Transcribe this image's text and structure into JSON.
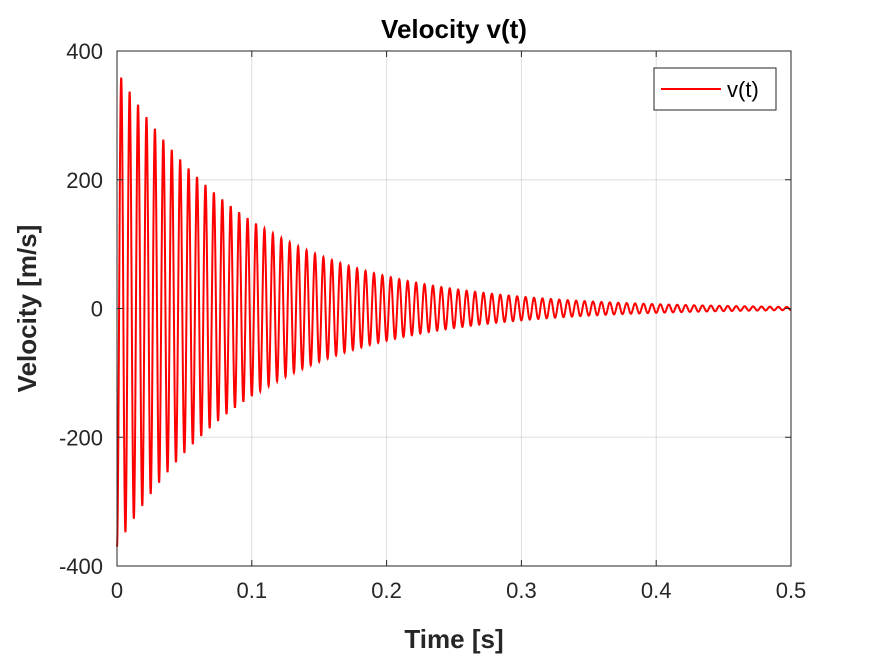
{
  "chart_data": {
    "type": "line",
    "title": "Velocity v(t)",
    "xlabel": "Time [s]",
    "ylabel": "Velocity [m/s]",
    "xlim": [
      0,
      0.5
    ],
    "ylim": [
      -400,
      400
    ],
    "xticks": [
      0,
      0.1,
      0.2,
      0.3,
      0.4,
      0.5
    ],
    "xtick_labels": [
      "0",
      "0.1",
      "0.2",
      "0.3",
      "0.4",
      "0.5"
    ],
    "yticks": [
      -400,
      -200,
      0,
      200,
      400
    ],
    "ytick_labels": [
      "-400",
      "-200",
      "0",
      "200",
      "400"
    ],
    "grid": true,
    "legend_position": "top-right",
    "series": [
      {
        "name": "v(t)",
        "color": "#ff0000",
        "model": "damped_sine",
        "initial_amplitude": 370,
        "decay_rate": 10,
        "frequency_hz": 160,
        "x_start": 0,
        "x_end": 0.5
      }
    ]
  }
}
